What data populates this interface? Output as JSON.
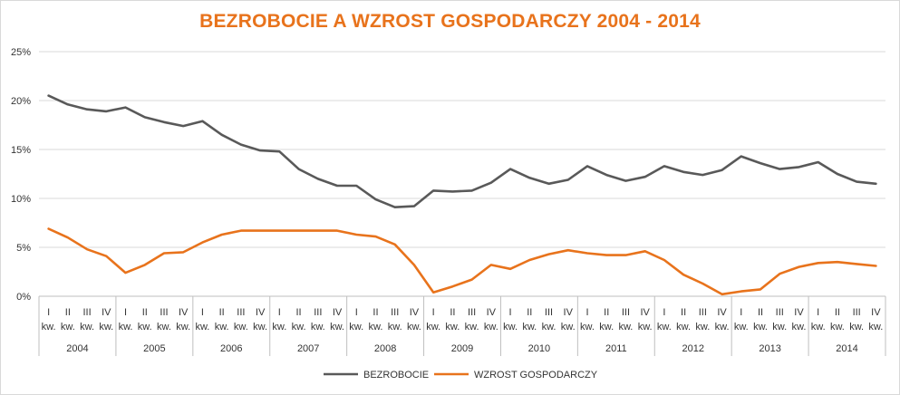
{
  "chart_data": {
    "type": "line",
    "title": "BEZROBOCIE A WZROST GOSPODARCZY 2004 - 2014",
    "xlabel": "",
    "ylabel": "",
    "ylim": [
      0,
      25
    ],
    "yticks": [
      "0%",
      "5%",
      "10%",
      "15%",
      "20%",
      "25%"
    ],
    "ytick_values": [
      0,
      5,
      10,
      15,
      20,
      25
    ],
    "quarters": [
      "I",
      "II",
      "III",
      "IV"
    ],
    "quarter_suffix": "kw.",
    "years": [
      "2004",
      "2005",
      "2006",
      "2007",
      "2008",
      "2009",
      "2010",
      "2011",
      "2012",
      "2013",
      "2014"
    ],
    "grid": true,
    "legend_position": "bottom",
    "colors": {
      "title": "#e8731c",
      "unemployment": "#595959",
      "growth": "#e8731c",
      "grid": "#d9d9d9"
    },
    "series": [
      {
        "name": "BEZROBOCIE",
        "values": [
          20.5,
          19.6,
          19.1,
          18.9,
          19.3,
          18.3,
          17.8,
          17.4,
          17.9,
          16.5,
          15.5,
          14.9,
          14.8,
          13.0,
          12.0,
          11.3,
          11.3,
          9.9,
          9.1,
          9.2,
          10.8,
          10.7,
          10.8,
          11.6,
          13.0,
          12.1,
          11.5,
          11.9,
          13.3,
          12.4,
          11.8,
          12.2,
          13.3,
          12.7,
          12.4,
          12.9,
          14.3,
          13.6,
          13.0,
          13.2,
          13.7,
          12.5,
          11.7,
          11.5
        ]
      },
      {
        "name": "WZROST GOSPODARCZY",
        "values": [
          6.9,
          6.0,
          4.8,
          4.1,
          2.4,
          3.2,
          4.4,
          4.5,
          5.5,
          6.3,
          6.7,
          6.7,
          6.7,
          6.7,
          6.7,
          6.7,
          6.3,
          6.1,
          5.3,
          3.2,
          0.4,
          1.0,
          1.7,
          3.2,
          2.8,
          3.7,
          4.3,
          4.7,
          4.4,
          4.2,
          4.2,
          4.6,
          3.7,
          2.2,
          1.3,
          0.2,
          0.5,
          0.7,
          2.3,
          3.0,
          3.4,
          3.5,
          3.3,
          3.1
        ]
      }
    ]
  }
}
